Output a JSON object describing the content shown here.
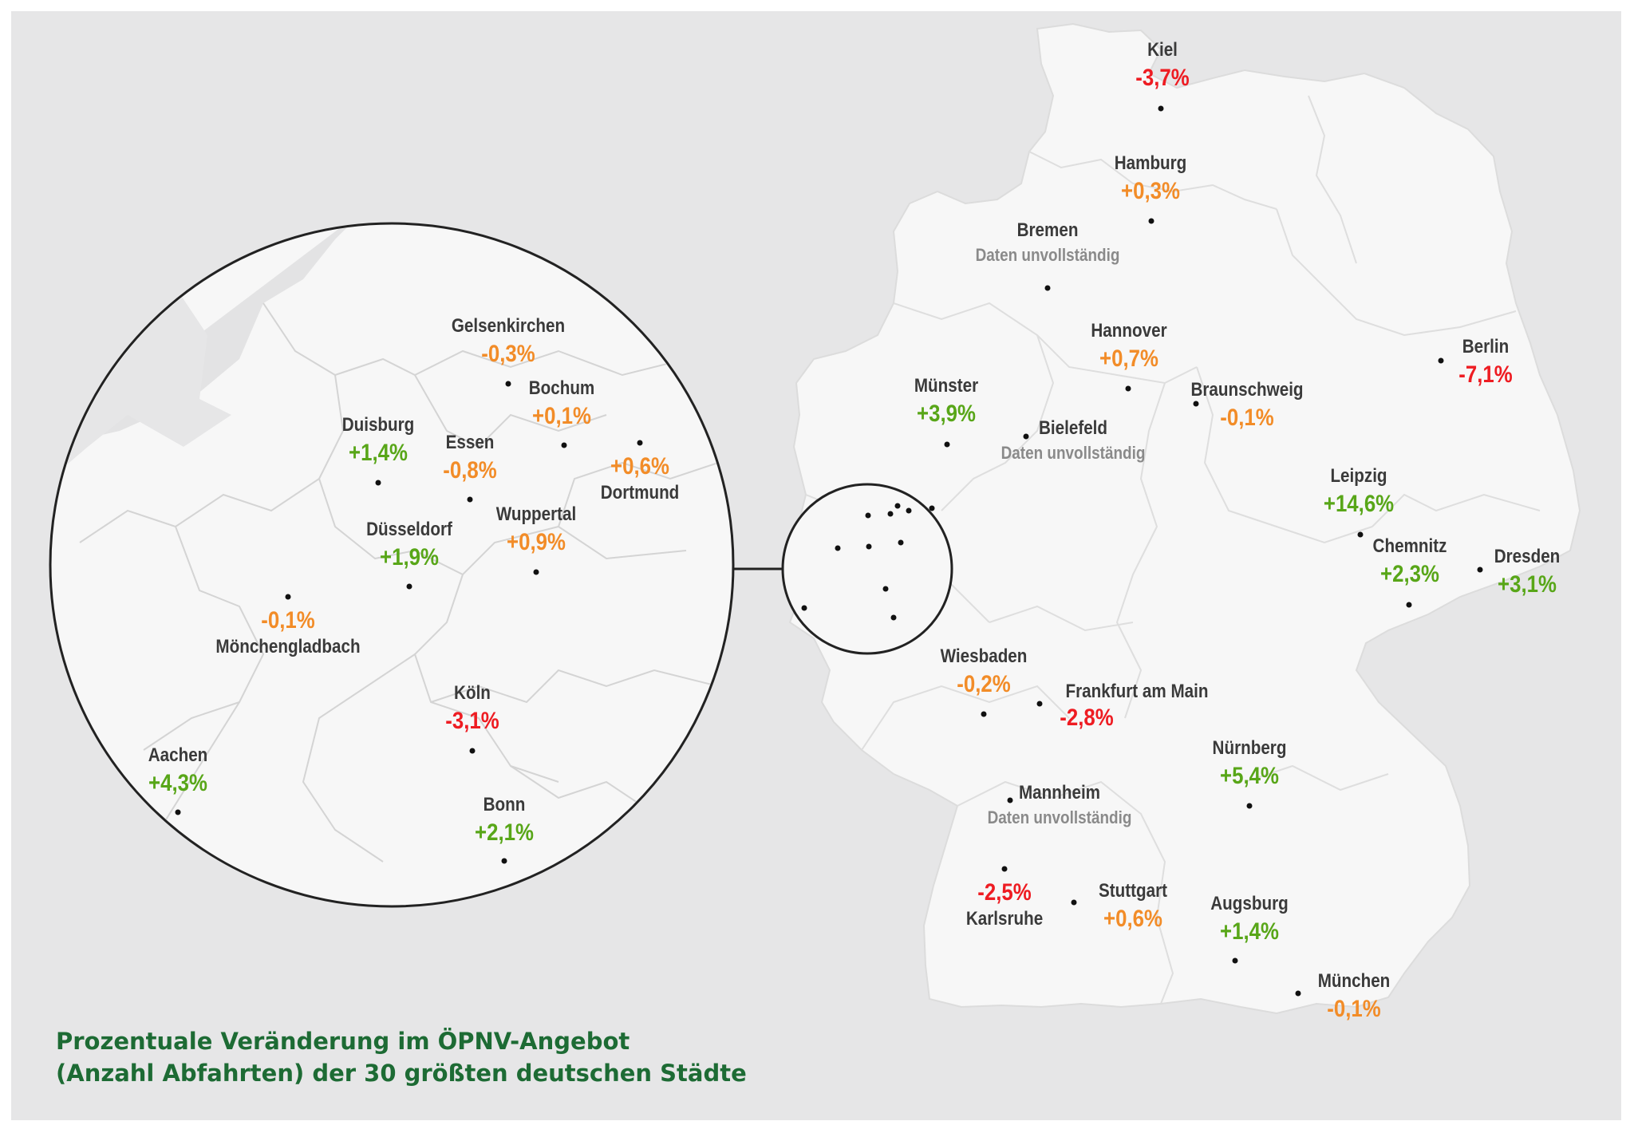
{
  "title": {
    "line1": "Prozentuale Veränderung  im ÖPNV-Angebot",
    "line2": "(Anzahl Abfahrten) der 30 größten deutschen Städte"
  },
  "colors": {
    "negative": "#ee1c22",
    "neutral": "#f28c28",
    "positive": "#58a618",
    "title": "#1d6b34",
    "land": "#f7f7f7",
    "background": "#e6e6e7"
  },
  "cities": {
    "kiel": {
      "name": "Kiel",
      "value": "-3,7%"
    },
    "hamburg": {
      "name": "Hamburg",
      "value": "+0,3%"
    },
    "bremen": {
      "name": "Bremen",
      "note": "Daten unvollständig"
    },
    "hannover": {
      "name": "Hannover",
      "value": "+0,7%"
    },
    "berlin": {
      "name": "Berlin",
      "value": "-7,1%"
    },
    "muenster": {
      "name": "Münster",
      "value": "+3,9%"
    },
    "bielefeld": {
      "name": "Bielefeld",
      "note": "Daten unvollständig"
    },
    "braunschweig": {
      "name": "Braunschweig",
      "value": "-0,1%"
    },
    "leipzig": {
      "name": "Leipzig",
      "value": "+14,6%"
    },
    "chemnitz": {
      "name": "Chemnitz",
      "value": "+2,3%"
    },
    "dresden": {
      "name": "Dresden",
      "value": "+3,1%"
    },
    "wiesbaden": {
      "name": "Wiesbaden",
      "value": "-0,2%"
    },
    "frankfurt": {
      "name": "Frankfurt am Main",
      "value": "-2,8%"
    },
    "nuernberg": {
      "name": "Nürnberg",
      "value": "+5,4%"
    },
    "mannheim": {
      "name": "Mannheim",
      "note": "Daten unvollständig"
    },
    "karlsruhe": {
      "name": "Karlsruhe",
      "value": "-2,5%"
    },
    "stuttgart": {
      "name": "Stuttgart",
      "value": "+0,6%"
    },
    "augsburg": {
      "name": "Augsburg",
      "value": "+1,4%"
    },
    "muenchen": {
      "name": "München",
      "value": "-0,1%"
    },
    "gelsenkirchen": {
      "name": "Gelsenkirchen",
      "value": "-0,3%"
    },
    "bochum": {
      "name": "Bochum",
      "value": "+0,1%"
    },
    "duisburg": {
      "name": "Duisburg",
      "value": "+1,4%"
    },
    "essen": {
      "name": "Essen",
      "value": "-0,8%"
    },
    "dortmund": {
      "name": "Dortmund",
      "value": "+0,6%"
    },
    "duesseldorf": {
      "name": "Düsseldorf",
      "value": "+1,9%"
    },
    "wuppertal": {
      "name": "Wuppertal",
      "value": "+0,9%"
    },
    "moenchengladbach": {
      "name": "Mönchengladbach",
      "value": "-0,1%"
    },
    "koeln": {
      "name": "Köln",
      "value": "-3,1%"
    },
    "aachen": {
      "name": "Aachen",
      "value": "+4,3%"
    },
    "bonn": {
      "name": "Bonn",
      "value": "+2,1%"
    }
  }
}
